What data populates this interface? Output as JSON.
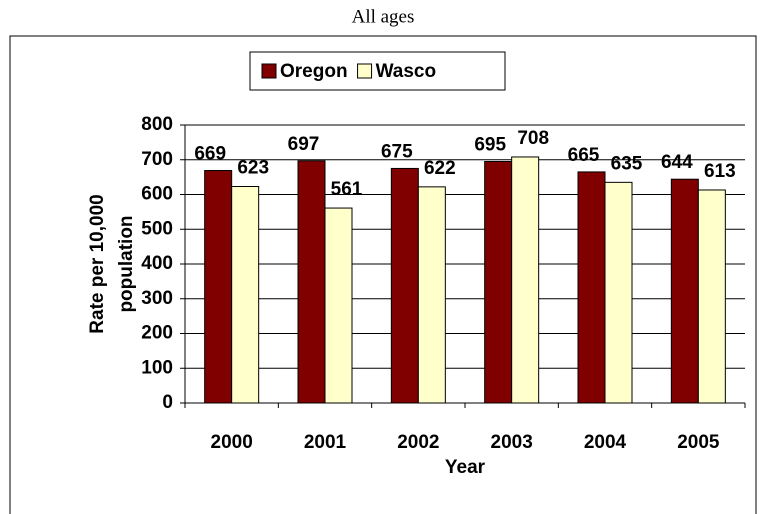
{
  "chart_data": {
    "type": "bar",
    "title": "All ages",
    "categories": [
      "2000",
      "2001",
      "2002",
      "2003",
      "2004",
      "2005"
    ],
    "series": [
      {
        "name": "Oregon",
        "color": "#800000",
        "values": [
          669,
          697,
          675,
          695,
          665,
          644
        ]
      },
      {
        "name": "Wasco",
        "color": "#ffffcc",
        "values": [
          623,
          561,
          622,
          708,
          635,
          613
        ]
      }
    ],
    "ylabel": [
      "Rate per 10,000",
      "population"
    ],
    "xlabel": "Year",
    "ylim": [
      0,
      800
    ],
    "yticks": [
      0,
      100,
      200,
      300,
      400,
      500,
      600,
      700,
      800
    ],
    "grid": true
  }
}
